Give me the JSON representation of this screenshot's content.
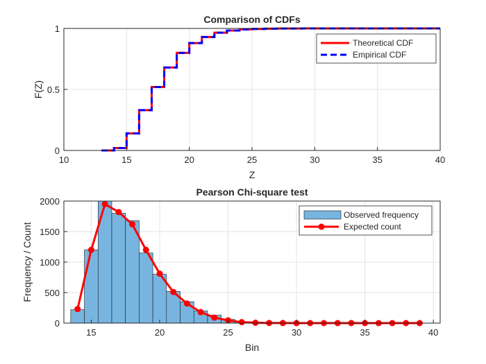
{
  "chart_data": [
    {
      "type": "line",
      "title": "Comparison of CDFs",
      "xlabel": "Z",
      "ylabel": "F(Z)",
      "xlim": [
        10,
        40
      ],
      "ylim": [
        0,
        1
      ],
      "xticks": [
        10,
        15,
        20,
        25,
        30,
        35,
        40
      ],
      "yticks": [
        0,
        0.5,
        1
      ],
      "xtick_labels": [
        "10",
        "15",
        "20",
        "25",
        "30",
        "35",
        "40"
      ],
      "ytick_labels": [
        "0",
        "0.5",
        "1"
      ],
      "grid": true,
      "legend_position": "top-right",
      "x": [
        13,
        14,
        15,
        16,
        17,
        18,
        19,
        20,
        21,
        22,
        23,
        24,
        25,
        26,
        27,
        28,
        29,
        30,
        31,
        32,
        33,
        34,
        35,
        36,
        37,
        38,
        39,
        40
      ],
      "series": [
        {
          "name": "Theoretical CDF",
          "style": "solid",
          "color": "#ff0000",
          "values": [
            0.0,
            0.02,
            0.14,
            0.33,
            0.52,
            0.68,
            0.8,
            0.88,
            0.93,
            0.965,
            0.983,
            0.992,
            0.996,
            0.998,
            0.999,
            0.9995,
            1.0,
            1.0,
            1.0,
            1.0,
            1.0,
            1.0,
            1.0,
            1.0,
            1.0,
            1.0,
            1.0,
            1.0
          ]
        },
        {
          "name": "Empirical CDF",
          "style": "dashed",
          "color": "#0000ff",
          "values": [
            0.0,
            0.02,
            0.14,
            0.33,
            0.52,
            0.68,
            0.8,
            0.88,
            0.93,
            0.965,
            0.983,
            0.992,
            0.996,
            0.998,
            0.999,
            0.9995,
            1.0,
            1.0,
            1.0,
            1.0,
            1.0,
            1.0,
            1.0,
            1.0,
            1.0,
            1.0,
            1.0,
            1.0
          ]
        }
      ]
    },
    {
      "type": "bar",
      "title": "Pearson Chi-square test",
      "xlabel": "Bin",
      "ylabel": "Frequency / Count",
      "xlim": [
        13,
        40.5
      ],
      "ylim": [
        0,
        2000
      ],
      "xticks": [
        15,
        20,
        25,
        30,
        35,
        40
      ],
      "yticks": [
        0,
        500,
        1000,
        1500,
        2000
      ],
      "xtick_labels": [
        "15",
        "20",
        "25",
        "30",
        "35",
        "40"
      ],
      "ytick_labels": [
        "0",
        "500",
        "1000",
        "1500",
        "2000"
      ],
      "grid": true,
      "legend_position": "top-right",
      "bins": [
        14,
        15,
        16,
        17,
        18,
        19,
        20,
        21,
        22,
        23,
        24,
        25,
        26,
        27,
        28,
        29,
        30,
        31,
        32,
        33,
        34,
        35,
        36,
        37,
        38,
        39
      ],
      "series": [
        {
          "name": "Observed frequency",
          "kind": "bar",
          "color": "#77b5e0",
          "values": [
            220,
            1200,
            2000,
            1800,
            1680,
            1150,
            800,
            520,
            350,
            200,
            130,
            60,
            20,
            10,
            5,
            3,
            2,
            1,
            1,
            0,
            0,
            0,
            0,
            0,
            0,
            0
          ]
        },
        {
          "name": "Expected count",
          "kind": "line-markers",
          "color": "#ff0000",
          "values": [
            230,
            1200,
            1950,
            1820,
            1620,
            1200,
            810,
            510,
            320,
            180,
            90,
            45,
            15,
            5,
            2,
            1,
            0,
            0,
            0,
            0,
            0,
            0,
            0,
            0,
            0,
            0
          ]
        }
      ]
    }
  ]
}
